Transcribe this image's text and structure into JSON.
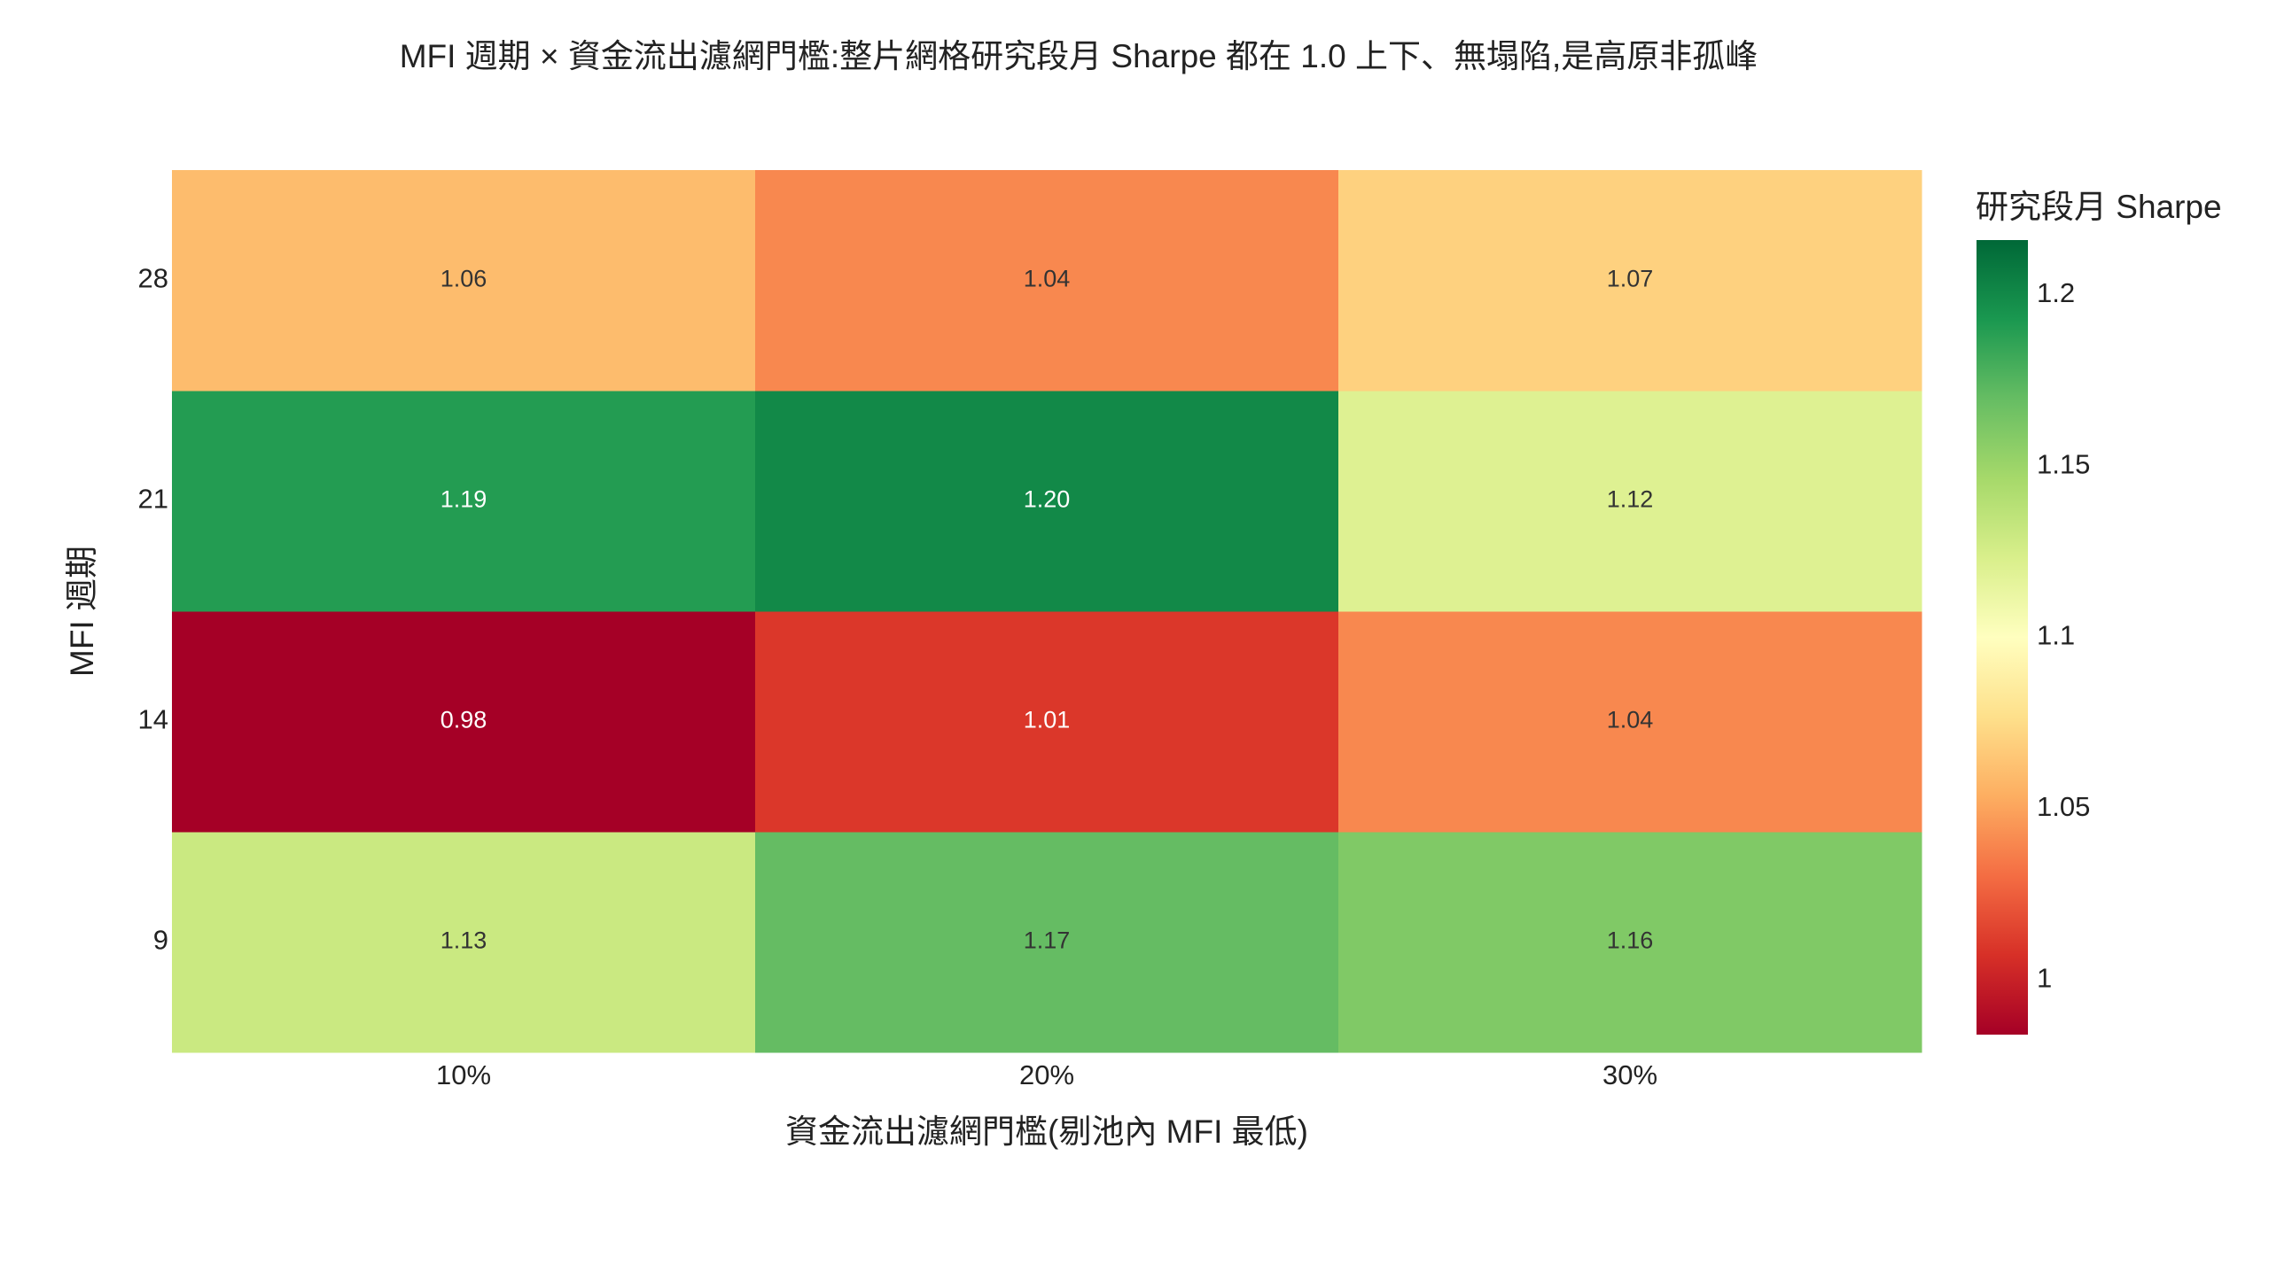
{
  "chart_data": {
    "type": "heatmap",
    "title": "MFI 週期 × 資金流出濾網門檻:整片網格研究段月 Sharpe 都在 1.0 上下、無塌陷,是高原非孤峰",
    "x_label": "資金流出濾網門檻(剔池內 MFI 最低)",
    "y_label": "MFI 週期",
    "x": [
      "10%",
      "20%",
      "30%"
    ],
    "y": [
      "9",
      "14",
      "21",
      "28"
    ],
    "values": [
      [
        1.13,
        1.17,
        1.16
      ],
      [
        0.98,
        1.01,
        1.04
      ],
      [
        1.19,
        1.2,
        1.12
      ],
      [
        1.06,
        1.04,
        1.07
      ]
    ],
    "value_labels": [
      [
        "1.13",
        "1.17",
        "1.16"
      ],
      [
        "0.98",
        "1.01",
        "1.04"
      ],
      [
        "1.19",
        "1.20",
        "1.12"
      ],
      [
        "1.06",
        "1.04",
        "1.07"
      ]
    ],
    "colorbar_title": "研究段月 Sharpe",
    "zlim": [
      0.984,
      1.216
    ],
    "zticks": [
      1,
      1.05,
      1.1,
      1.15,
      1.2
    ],
    "colorscale": [
      "#a50026",
      "#d73027",
      "#f46d43",
      "#fdae61",
      "#fee08b",
      "#ffffbf",
      "#d9ef8b",
      "#a6d96a",
      "#66bd63",
      "#1a9850",
      "#006837"
    ]
  }
}
